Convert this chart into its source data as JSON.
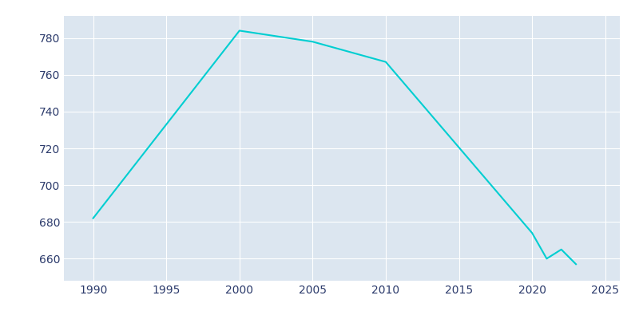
{
  "years": [
    1990,
    2000,
    2005,
    2010,
    2020,
    2021,
    2022,
    2023
  ],
  "population": [
    682,
    784,
    778,
    767,
    674,
    660,
    665,
    657
  ],
  "line_color": "#00CED1",
  "fig_bg_color": "#FFFFFF",
  "plot_bg_color": "#DCE6F0",
  "tick_color": "#2B3A6B",
  "grid_color": "#FFFFFF",
  "xlim": [
    1988,
    2026
  ],
  "ylim": [
    648,
    792
  ],
  "xticks": [
    1990,
    1995,
    2000,
    2005,
    2010,
    2015,
    2020,
    2025
  ],
  "yticks": [
    660,
    680,
    700,
    720,
    740,
    760,
    780
  ],
  "linewidth": 1.5
}
